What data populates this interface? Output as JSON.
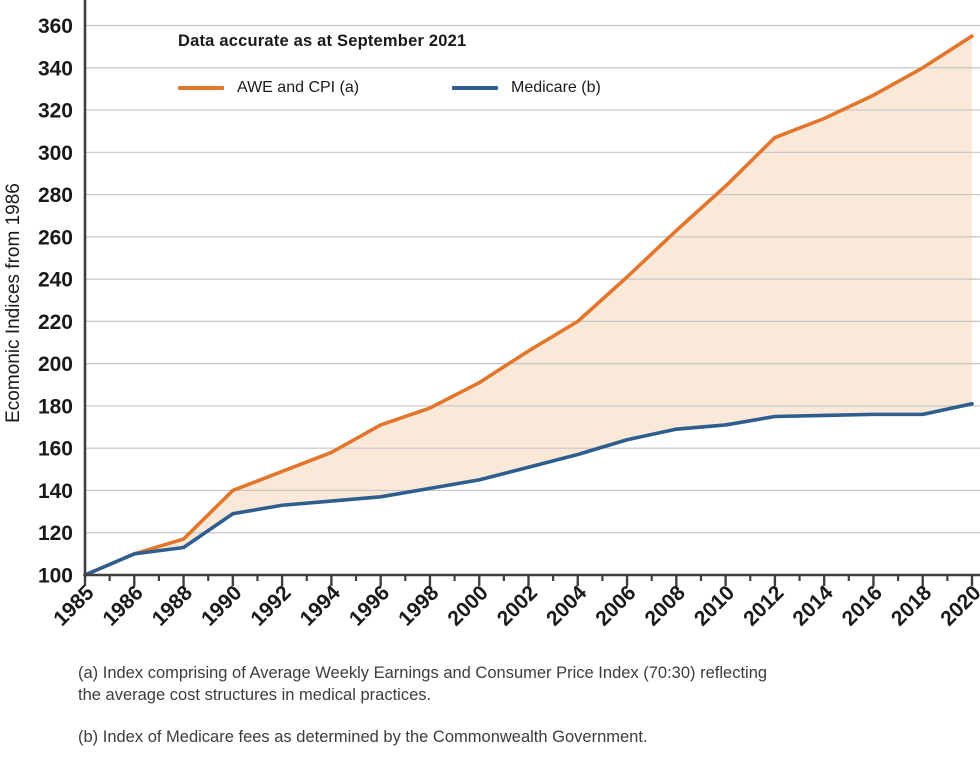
{
  "chart_data": {
    "type": "line",
    "title": "",
    "annotation": "Data accurate as at September 2021",
    "ylabel": "Ecomonic Indices from 1986",
    "xlabel": "",
    "categories": [
      "1985",
      "1986",
      "1988",
      "1990",
      "1992",
      "1994",
      "1996",
      "1998",
      "2000",
      "2002",
      "2004",
      "2006",
      "2008",
      "2010",
      "2012",
      "2014",
      "2016",
      "2018",
      "2020"
    ],
    "series": [
      {
        "name": "AWE and CPI (a)",
        "color": "#E2762C",
        "values": [
          100,
          110,
          117,
          140,
          149,
          158,
          171,
          179,
          191,
          206,
          220,
          241,
          263,
          284,
          307,
          316,
          327,
          340,
          355
        ]
      },
      {
        "name": "Medicare (b)",
        "color": "#2E5E8E",
        "values": [
          100,
          110,
          113,
          129,
          133,
          135,
          137,
          141,
          145,
          151,
          157,
          164,
          169,
          171,
          175,
          175.5,
          176,
          176,
          181
        ]
      }
    ],
    "fill_between_series_color": "#FAE8D9",
    "ylim": [
      100,
      360
    ],
    "ytick_step": 20,
    "yticks": [
      100,
      120,
      140,
      160,
      180,
      200,
      220,
      240,
      260,
      280,
      300,
      320,
      340,
      360
    ],
    "grid": true,
    "gridline_color": "#C6C6C6",
    "axis_color": "#3F3F3F",
    "legend_position": "top-left-inside"
  },
  "footnotes": {
    "a": "(a) Index comprising of Average Weekly Earnings and Consumer Price Index (70:30) reflecting the average cost structures in medical practices.",
    "b": "(b) Index of Medicare fees as determined by the Commonwealth Government."
  }
}
